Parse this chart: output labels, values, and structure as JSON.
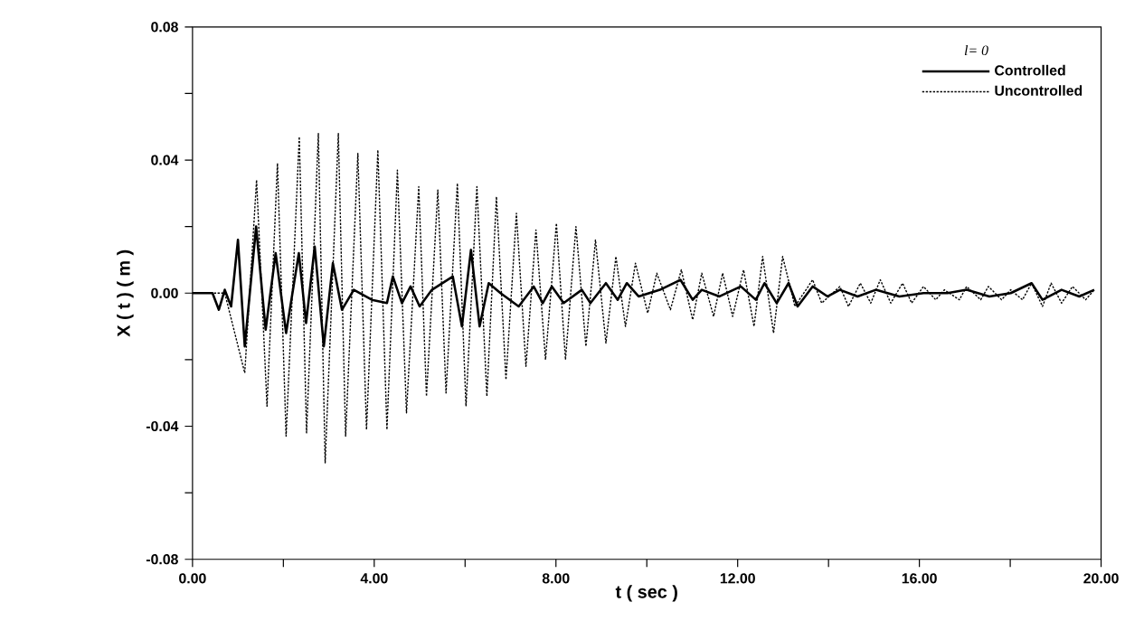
{
  "chart_data": {
    "type": "line",
    "xlabel": "t ( sec )",
    "ylabel": "X ( t )   ( m )",
    "legend_title": "l= 0",
    "legend": "top right",
    "xlim": [
      0,
      20
    ],
    "ylim": [
      -0.08,
      0.08
    ],
    "xticks": [
      {
        "value": 0,
        "label": "0.00"
      },
      {
        "value": 2,
        "label": null
      },
      {
        "value": 4,
        "label": "4.00"
      },
      {
        "value": 6,
        "label": null
      },
      {
        "value": 8,
        "label": "8.00"
      },
      {
        "value": 10,
        "label": null
      },
      {
        "value": 12,
        "label": "12.00"
      },
      {
        "value": 14,
        "label": null
      },
      {
        "value": 16,
        "label": "16.00"
      },
      {
        "value": 18,
        "label": null
      },
      {
        "value": 20,
        "label": "20.00"
      }
    ],
    "yticks": [
      {
        "value": -0.08,
        "label": "-0.08"
      },
      {
        "value": -0.06,
        "label": null
      },
      {
        "value": -0.04,
        "label": "-0.04"
      },
      {
        "value": -0.02,
        "label": null
      },
      {
        "value": 0,
        "label": "0.00"
      },
      {
        "value": 0.02,
        "label": null
      },
      {
        "value": 0.04,
        "label": "0.04"
      },
      {
        "value": 0.06,
        "label": null
      },
      {
        "value": 0.08,
        "label": "0.08"
      }
    ],
    "series": [
      {
        "name": "Controlled",
        "color": "#000000",
        "line_style": "solid",
        "x": [
          0,
          0.44,
          0.58,
          0.71,
          0.85,
          1.0,
          1.15,
          1.4,
          1.61,
          1.83,
          2.06,
          2.34,
          2.5,
          2.69,
          2.89,
          3.09,
          3.29,
          3.55,
          3.95,
          4.28,
          4.41,
          4.61,
          4.8,
          5.0,
          5.27,
          5.73,
          5.93,
          6.13,
          6.32,
          6.52,
          6.78,
          7.18,
          7.51,
          7.71,
          7.91,
          8.17,
          8.57,
          8.76,
          9.1,
          9.36,
          9.56,
          9.82,
          10.29,
          10.74,
          11.01,
          11.21,
          11.6,
          12.07,
          12.4,
          12.59,
          12.86,
          13.12,
          13.32,
          13.65,
          13.98,
          14.25,
          14.64,
          15.04,
          15.56,
          16.09,
          16.62,
          17.04,
          17.54,
          18.01,
          18.47,
          18.71,
          19.13,
          19.52,
          19.85
        ],
        "values": [
          0,
          0,
          -0.005,
          0.001,
          -0.004,
          0.016,
          -0.016,
          0.02,
          -0.011,
          0.012,
          -0.012,
          0.012,
          -0.009,
          0.014,
          -0.016,
          0.009,
          -0.005,
          0.001,
          -0.002,
          -0.003,
          0.005,
          -0.003,
          0.002,
          -0.004,
          0.001,
          0.005,
          -0.01,
          0.013,
          -0.01,
          0.003,
          0,
          -0.004,
          0.002,
          -0.003,
          0.002,
          -0.003,
          0.001,
          -0.003,
          0.003,
          -0.002,
          0.003,
          -0.001,
          0.001,
          0.004,
          -0.002,
          0.001,
          -0.001,
          0.002,
          -0.002,
          0.003,
          -0.003,
          0.003,
          -0.004,
          0.002,
          -0.001,
          0.001,
          -0.001,
          0.001,
          -0.001,
          0,
          0,
          0.001,
          -0.001,
          0,
          0.003,
          -0.002,
          0.001,
          -0.001,
          0.001
        ]
      },
      {
        "name": "Uncontrolled",
        "color": "#000000",
        "line_style": "dotted",
        "x": [
          0,
          0.71,
          1.15,
          1.41,
          1.64,
          1.87,
          2.06,
          2.35,
          2.51,
          2.77,
          2.92,
          3.21,
          3.37,
          3.64,
          3.83,
          4.08,
          4.28,
          4.51,
          4.71,
          4.98,
          5.15,
          5.4,
          5.58,
          5.83,
          6.02,
          6.26,
          6.48,
          6.69,
          6.9,
          7.13,
          7.34,
          7.56,
          7.77,
          8.01,
          8.21,
          8.44,
          8.66,
          8.87,
          9.1,
          9.32,
          9.53,
          9.75,
          10.02,
          10.22,
          10.52,
          10.76,
          11.01,
          11.21,
          11.47,
          11.67,
          11.89,
          12.13,
          12.36,
          12.55,
          12.79,
          12.99,
          13.26,
          13.65,
          13.85,
          14.25,
          14.44,
          14.7,
          14.93,
          15.14,
          15.37,
          15.63,
          15.83,
          16.09,
          16.36,
          16.55,
          16.88,
          17.04,
          17.35,
          17.52,
          17.81,
          18.01,
          18.27,
          18.47,
          18.71,
          18.9,
          19.13,
          19.37,
          19.66,
          19.85
        ],
        "values": [
          0,
          0,
          -0.024,
          0.034,
          -0.034,
          0.039,
          -0.043,
          0.047,
          -0.042,
          0.048,
          -0.051,
          0.048,
          -0.043,
          0.042,
          -0.041,
          0.043,
          -0.041,
          0.037,
          -0.036,
          0.032,
          -0.031,
          0.031,
          -0.03,
          0.033,
          -0.034,
          0.032,
          -0.031,
          0.029,
          -0.026,
          0.024,
          -0.022,
          0.019,
          -0.02,
          0.021,
          -0.02,
          0.02,
          -0.016,
          0.016,
          -0.015,
          0.011,
          -0.01,
          0.009,
          -0.006,
          0.006,
          -0.005,
          0.007,
          -0.008,
          0.006,
          -0.007,
          0.006,
          -0.007,
          0.007,
          -0.01,
          0.011,
          -0.012,
          0.011,
          -0.004,
          0.004,
          -0.003,
          0.002,
          -0.004,
          0.003,
          -0.003,
          0.004,
          -0.003,
          0.003,
          -0.003,
          0.002,
          -0.002,
          0.001,
          -0.002,
          0.002,
          -0.002,
          0.002,
          -0.002,
          0.001,
          -0.002,
          0.003,
          -0.004,
          0.003,
          -0.003,
          0.002,
          -0.002,
          0.001
        ]
      }
    ]
  }
}
